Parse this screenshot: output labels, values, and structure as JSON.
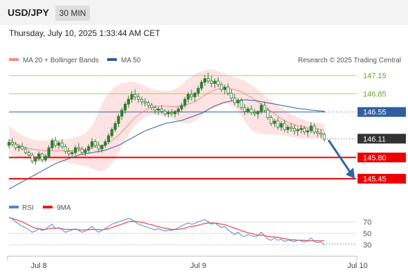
{
  "header": {
    "symbol": "USD/JPY",
    "timeframe": "30 MIN",
    "datetime": "Thursday, July 10, 2025 1:33:44 AM CET"
  },
  "legend": {
    "ma20": "MA 20 + Bollinger Bands",
    "ma50": "MA 50",
    "credit": "Research © 2025 Trading Central"
  },
  "rsi_legend": {
    "rsi": "RSI",
    "ma": "9MA"
  },
  "colors": {
    "ma20": "#f28b82",
    "band_fill": "#fde3e3",
    "ma50": "#2f5f9e",
    "candle": "#2e7d32",
    "resistance": "#a5d06e",
    "support": "#ee0000",
    "pivot": "#2f5f9e",
    "current": "#333333",
    "arrow": "#2f64a8",
    "rsi": "#5b7fd4",
    "rsi_ma": "#e02020"
  },
  "chart_data": {
    "type": "candlestick",
    "price_min": 145.2,
    "price_max": 147.3,
    "levels": [
      {
        "value": 147.15,
        "label": "147.15",
        "kind": "resistance"
      },
      {
        "value": 146.85,
        "label": "146.85",
        "kind": "resistance"
      },
      {
        "value": 146.55,
        "label": "146.55",
        "kind": "pivot"
      },
      {
        "value": 146.11,
        "label": "146.11",
        "kind": "current"
      },
      {
        "value": 145.8,
        "label": "145.80",
        "kind": "support"
      },
      {
        "value": 145.45,
        "label": "145.45",
        "kind": "support"
      }
    ],
    "x_labels": [
      {
        "index": 9,
        "label": "Jul 8"
      },
      {
        "index": 57,
        "label": "Jul 9"
      },
      {
        "index": 105,
        "label": "Jul 10"
      }
    ],
    "candles": [
      [
        146.0,
        146.1,
        145.95,
        146.05
      ],
      [
        146.05,
        146.12,
        145.98,
        146.02
      ],
      [
        146.02,
        146.06,
        145.92,
        145.96
      ],
      [
        145.96,
        146.02,
        145.9,
        145.98
      ],
      [
        145.98,
        146.04,
        145.92,
        145.94
      ],
      [
        145.94,
        145.98,
        145.85,
        145.88
      ],
      [
        145.88,
        145.92,
        145.8,
        145.84
      ],
      [
        145.84,
        145.88,
        145.7,
        145.74
      ],
      [
        145.74,
        145.82,
        145.68,
        145.78
      ],
      [
        145.78,
        145.9,
        145.74,
        145.86
      ],
      [
        145.86,
        145.88,
        145.72,
        145.76
      ],
      [
        145.76,
        145.86,
        145.72,
        145.82
      ],
      [
        145.82,
        146.0,
        145.8,
        145.96
      ],
      [
        145.96,
        146.12,
        145.92,
        146.08
      ],
      [
        146.08,
        146.14,
        145.96,
        146.0
      ],
      [
        146.0,
        146.08,
        145.94,
        146.04
      ],
      [
        146.04,
        146.1,
        145.94,
        145.98
      ],
      [
        145.98,
        146.02,
        145.86,
        145.9
      ],
      [
        145.9,
        145.96,
        145.82,
        145.86
      ],
      [
        145.86,
        145.92,
        145.8,
        145.88
      ],
      [
        145.88,
        146.0,
        145.84,
        145.96
      ],
      [
        145.96,
        146.04,
        145.9,
        145.94
      ],
      [
        145.94,
        145.98,
        145.84,
        145.88
      ],
      [
        145.88,
        145.96,
        145.82,
        145.92
      ],
      [
        145.92,
        146.02,
        145.88,
        145.98
      ],
      [
        145.98,
        146.12,
        145.94,
        146.06
      ],
      [
        146.06,
        146.1,
        145.96,
        146.0
      ],
      [
        146.0,
        146.06,
        145.88,
        145.94
      ],
      [
        145.94,
        146.02,
        145.88,
        146.0
      ],
      [
        146.0,
        146.1,
        145.96,
        146.06
      ],
      [
        146.06,
        146.2,
        146.02,
        146.16
      ],
      [
        146.16,
        146.3,
        146.12,
        146.26
      ],
      [
        146.26,
        146.4,
        146.22,
        146.36
      ],
      [
        146.36,
        146.52,
        146.3,
        146.48
      ],
      [
        146.48,
        146.62,
        146.42,
        146.58
      ],
      [
        146.58,
        146.72,
        146.52,
        146.68
      ],
      [
        146.68,
        146.82,
        146.62,
        146.76
      ],
      [
        146.76,
        146.9,
        146.7,
        146.84
      ],
      [
        146.84,
        146.92,
        146.74,
        146.8
      ],
      [
        146.8,
        146.86,
        146.7,
        146.76
      ],
      [
        146.76,
        146.8,
        146.66,
        146.72
      ],
      [
        146.72,
        146.78,
        146.64,
        146.7
      ],
      [
        146.7,
        146.74,
        146.62,
        146.66
      ],
      [
        146.66,
        146.7,
        146.58,
        146.62
      ],
      [
        146.62,
        146.66,
        146.52,
        146.58
      ],
      [
        146.58,
        146.64,
        146.5,
        146.6
      ],
      [
        146.6,
        146.66,
        146.52,
        146.56
      ],
      [
        146.56,
        146.6,
        146.48,
        146.52
      ],
      [
        146.52,
        146.58,
        146.46,
        146.54
      ],
      [
        146.54,
        146.6,
        146.48,
        146.52
      ],
      [
        146.52,
        146.58,
        146.46,
        146.56
      ],
      [
        146.56,
        146.64,
        146.5,
        146.6
      ],
      [
        146.6,
        146.7,
        146.56,
        146.66
      ],
      [
        146.66,
        146.8,
        146.62,
        146.76
      ],
      [
        146.76,
        146.88,
        146.7,
        146.84
      ],
      [
        146.84,
        146.92,
        146.74,
        146.8
      ],
      [
        146.8,
        146.88,
        146.72,
        146.86
      ],
      [
        146.86,
        146.98,
        146.8,
        146.94
      ],
      [
        146.94,
        147.08,
        146.9,
        147.04
      ],
      [
        147.04,
        147.16,
        146.98,
        147.1
      ],
      [
        147.1,
        147.2,
        147.02,
        147.06
      ],
      [
        147.06,
        147.14,
        146.96,
        147.02
      ],
      [
        147.02,
        147.1,
        146.94,
        147.06
      ],
      [
        147.06,
        147.12,
        146.96,
        147.0
      ],
      [
        147.0,
        147.04,
        146.88,
        146.92
      ],
      [
        146.92,
        147.0,
        146.84,
        146.96
      ],
      [
        146.96,
        147.02,
        146.82,
        146.86
      ],
      [
        146.86,
        146.92,
        146.74,
        146.78
      ],
      [
        146.78,
        146.84,
        146.66,
        146.7
      ],
      [
        146.7,
        146.78,
        146.62,
        146.74
      ],
      [
        146.74,
        146.78,
        146.58,
        146.62
      ],
      [
        146.62,
        146.68,
        146.5,
        146.56
      ],
      [
        146.56,
        146.64,
        146.52,
        146.6
      ],
      [
        146.6,
        146.66,
        146.5,
        146.54
      ],
      [
        146.54,
        146.6,
        146.48,
        146.52
      ],
      [
        146.52,
        146.58,
        146.44,
        146.56
      ],
      [
        146.56,
        146.7,
        146.52,
        146.66
      ],
      [
        146.66,
        146.72,
        146.54,
        146.58
      ],
      [
        146.58,
        146.62,
        146.42,
        146.46
      ],
      [
        146.46,
        146.5,
        146.32,
        146.36
      ],
      [
        146.36,
        146.44,
        146.3,
        146.4
      ],
      [
        146.4,
        146.46,
        146.26,
        146.3
      ],
      [
        146.3,
        146.4,
        146.24,
        146.36
      ],
      [
        146.36,
        146.42,
        146.22,
        146.26
      ],
      [
        146.26,
        146.34,
        146.2,
        146.3
      ],
      [
        146.3,
        146.36,
        146.22,
        146.28
      ],
      [
        146.28,
        146.34,
        146.18,
        146.24
      ],
      [
        146.24,
        146.3,
        146.16,
        146.26
      ],
      [
        146.26,
        146.34,
        146.2,
        146.28
      ],
      [
        146.28,
        146.32,
        146.18,
        146.22
      ],
      [
        146.22,
        146.28,
        146.14,
        146.24
      ],
      [
        146.24,
        146.38,
        146.2,
        146.32
      ],
      [
        146.32,
        146.36,
        146.18,
        146.22
      ],
      [
        146.22,
        146.28,
        146.14,
        146.2
      ],
      [
        146.2,
        146.26,
        146.12,
        146.18
      ],
      [
        146.18,
        146.22,
        146.06,
        146.1
      ]
    ],
    "ma20": [
      146.1,
      146.06,
      146.03,
      146.0,
      145.98,
      145.96,
      145.95,
      145.94,
      145.93,
      145.92,
      145.92,
      145.91,
      145.91,
      145.91,
      145.91,
      145.91,
      145.91,
      145.91,
      145.91,
      145.91,
      145.91,
      145.91,
      145.92,
      145.93,
      145.94,
      145.96,
      145.97,
      145.98,
      145.99,
      146.0,
      146.04,
      146.08,
      146.12,
      146.17,
      146.22,
      146.28,
      146.34,
      146.4,
      146.46,
      146.5,
      146.54,
      146.58,
      146.61,
      146.63,
      146.64,
      146.65,
      146.65,
      146.65,
      146.64,
      146.64,
      146.64,
      146.64,
      146.65,
      146.66,
      146.68,
      146.7,
      146.72,
      146.75,
      146.79,
      146.83,
      146.86,
      146.89,
      146.91,
      146.93,
      146.94,
      146.95,
      146.94,
      146.93,
      146.92,
      146.9,
      146.88,
      146.85,
      146.82,
      146.79,
      146.75,
      146.71,
      146.68,
      146.64,
      146.6,
      146.56,
      146.52,
      146.48,
      146.44,
      146.41,
      146.38,
      146.36,
      146.34,
      146.32,
      146.31,
      146.3,
      146.29,
      146.28,
      146.28,
      146.27,
      146.26,
      146.25
    ],
    "bb_upper": [
      146.32,
      146.28,
      146.24,
      146.2,
      146.17,
      146.14,
      146.12,
      146.1,
      146.09,
      146.08,
      146.08,
      146.08,
      146.08,
      146.08,
      146.08,
      146.09,
      146.1,
      146.1,
      146.11,
      146.12,
      146.13,
      146.15,
      146.17,
      146.2,
      146.25,
      146.32,
      146.42,
      146.55,
      146.68,
      146.78,
      146.86,
      146.92,
      146.97,
      147.0,
      147.02,
      147.03,
      147.04,
      147.05,
      147.04,
      147.02,
      147.0,
      146.98,
      146.95,
      146.93,
      146.92,
      146.91,
      146.9,
      146.9,
      146.9,
      146.91,
      146.93,
      146.96,
      147.0,
      147.05,
      147.1,
      147.14,
      147.17,
      147.2,
      147.22,
      147.24,
      147.25,
      147.25,
      147.24,
      147.22,
      147.2,
      147.18,
      147.16,
      147.14,
      147.12,
      147.1,
      147.08,
      147.06,
      147.03,
      147.0,
      146.96,
      146.92,
      146.87,
      146.83,
      146.78,
      146.74,
      146.7,
      146.66,
      146.62,
      146.58,
      146.55,
      146.52,
      146.49,
      146.46,
      146.44,
      146.42,
      146.4,
      146.39,
      146.38,
      146.37,
      146.36,
      146.35
    ],
    "bb_lower": [
      145.88,
      145.84,
      145.82,
      145.8,
      145.79,
      145.78,
      145.77,
      145.76,
      145.75,
      145.75,
      145.74,
      145.74,
      145.74,
      145.74,
      145.74,
      145.73,
      145.72,
      145.72,
      145.71,
      145.7,
      145.69,
      145.67,
      145.66,
      145.66,
      145.64,
      145.62,
      145.6,
      145.58,
      145.58,
      145.6,
      145.64,
      145.7,
      145.78,
      145.88,
      145.98,
      146.08,
      146.18,
      146.26,
      146.32,
      146.38,
      146.42,
      146.46,
      146.48,
      146.5,
      146.5,
      146.5,
      146.49,
      146.48,
      146.46,
      146.44,
      146.42,
      146.4,
      146.38,
      146.36,
      146.36,
      146.38,
      146.4,
      146.44,
      146.48,
      146.52,
      146.56,
      146.6,
      146.62,
      146.64,
      146.66,
      146.68,
      146.68,
      146.66,
      146.62,
      146.56,
      146.48,
      146.4,
      146.32,
      146.26,
      146.22,
      146.2,
      146.19,
      146.18,
      146.18,
      146.18,
      146.18,
      146.18,
      146.17,
      146.16,
      146.15,
      146.14,
      146.13,
      146.12,
      146.11,
      146.11,
      146.11,
      146.11,
      146.11,
      146.11,
      146.11,
      146.11
    ],
    "ma50": [
      145.28,
      145.31,
      145.34,
      145.37,
      145.4,
      145.43,
      145.46,
      145.49,
      145.52,
      145.55,
      145.58,
      145.61,
      145.64,
      145.67,
      145.7,
      145.72,
      145.74,
      145.76,
      145.78,
      145.8,
      145.82,
      145.84,
      145.85,
      145.86,
      145.87,
      145.88,
      145.89,
      145.9,
      145.91,
      145.92,
      145.94,
      145.96,
      145.98,
      146.0,
      146.03,
      146.06,
      146.09,
      146.12,
      146.15,
      146.18,
      146.21,
      146.24,
      146.26,
      146.28,
      146.3,
      146.32,
      146.34,
      146.36,
      146.37,
      146.38,
      146.39,
      146.4,
      146.41,
      146.43,
      146.45,
      146.47,
      146.49,
      146.51,
      146.53,
      146.56,
      146.59,
      146.62,
      146.65,
      146.67,
      146.69,
      146.71,
      146.72,
      146.73,
      146.74,
      146.74,
      146.75,
      146.75,
      146.75,
      146.74,
      146.74,
      146.73,
      146.72,
      146.71,
      146.7,
      146.69,
      146.68,
      146.67,
      146.66,
      146.65,
      146.64,
      146.63,
      146.62,
      146.61,
      146.6,
      146.6,
      146.59,
      146.58,
      146.58,
      146.57,
      146.57,
      146.56
    ],
    "rsi": {
      "ticks": [
        {
          "value": 70,
          "label": "70"
        },
        {
          "value": 50,
          "label": "50"
        },
        {
          "value": 30,
          "label": "30"
        }
      ],
      "rsi": [
        78,
        75,
        70,
        66,
        62,
        60,
        56,
        52,
        54,
        58,
        55,
        57,
        62,
        66,
        58,
        60,
        56,
        52,
        54,
        56,
        58,
        55,
        52,
        54,
        58,
        62,
        56,
        52,
        55,
        58,
        62,
        66,
        68,
        70,
        72,
        74,
        76,
        74,
        70,
        66,
        64,
        62,
        60,
        58,
        56,
        58,
        56,
        54,
        56,
        55,
        57,
        60,
        63,
        66,
        68,
        66,
        67,
        70,
        72,
        74,
        70,
        66,
        68,
        64,
        60,
        62,
        56,
        52,
        48,
        52,
        46,
        44,
        48,
        46,
        44,
        46,
        52,
        46,
        40,
        38,
        42,
        38,
        40,
        36,
        38,
        37,
        36,
        38,
        37,
        35,
        37,
        42,
        36,
        34,
        35,
        30
      ],
      "ma9": [
        77,
        76,
        74,
        72,
        70,
        67,
        64,
        61,
        59,
        58,
        57,
        57,
        58,
        59,
        59,
        59,
        58,
        57,
        57,
        57,
        57,
        56,
        56,
        56,
        56,
        57,
        57,
        57,
        56,
        57,
        58,
        60,
        62,
        64,
        66,
        68,
        70,
        71,
        71,
        70,
        69,
        68,
        66,
        65,
        63,
        62,
        60,
        59,
        58,
        57,
        57,
        57,
        58,
        59,
        61,
        62,
        63,
        64,
        66,
        67,
        68,
        68,
        68,
        67,
        66,
        65,
        63,
        61,
        59,
        57,
        55,
        53,
        51,
        50,
        48,
        47,
        47,
        46,
        45,
        44,
        44,
        43,
        42,
        41,
        40,
        39,
        39,
        38,
        38,
        38,
        37,
        37,
        37,
        37,
        37,
        37
      ]
    }
  }
}
